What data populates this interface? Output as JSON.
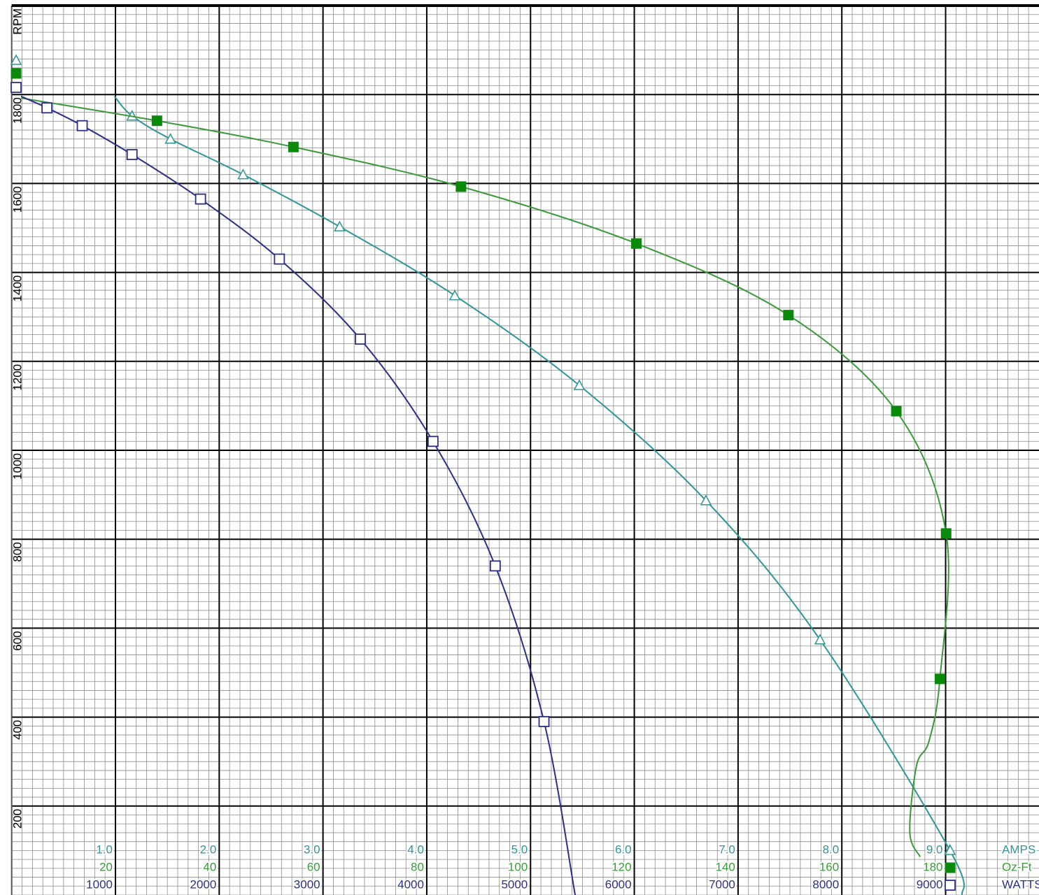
{
  "chart_data": {
    "type": "line",
    "y_label": "RPM",
    "ylim": [
      0,
      2000
    ],
    "yticks": [
      200,
      400,
      600,
      800,
      1000,
      1200,
      1400,
      1600,
      1800
    ],
    "grid": true,
    "series": [
      {
        "name": "AMPS",
        "color": "#2e9696",
        "marker": "triangle",
        "xlim": [
          0,
          9.9
        ],
        "xticks": [
          {
            "value": 1,
            "label": "1.0"
          },
          {
            "value": 2,
            "label": "2.0"
          },
          {
            "value": 3,
            "label": "3.0"
          },
          {
            "value": 4,
            "label": "4.0"
          },
          {
            "value": 5,
            "label": "5.0"
          },
          {
            "value": 6,
            "label": "6.0"
          },
          {
            "value": 7,
            "label": "7.0"
          },
          {
            "value": 8,
            "label": "8.0"
          },
          {
            "value": 9,
            "label": "9.0"
          }
        ],
        "x": [
          0.99,
          1.16,
          1.53,
          2.23,
          3.16,
          4.27,
          5.47,
          6.69,
          7.79,
          9.04,
          9.16
        ],
        "values": [
          1796,
          1752,
          1700,
          1620,
          1503,
          1348,
          1146,
          887,
          574,
          101,
          0
        ],
        "points_x": [
          1.16,
          1.53,
          2.23,
          3.16,
          4.27,
          5.47,
          6.69,
          7.79,
          9.04
        ],
        "points_y": [
          1752,
          1700,
          1620,
          1503,
          1348,
          1146,
          887,
          574,
          101
        ]
      },
      {
        "name": "Oz-Ft",
        "color": "#3a9a3a",
        "marker": "filled-square",
        "xlim": [
          0,
          198
        ],
        "xticks": [
          20,
          40,
          60,
          80,
          100,
          120,
          140,
          160,
          180
        ],
        "x": [
          1.8,
          28,
          54.3,
          86.6,
          120.4,
          149.7,
          170.5,
          180.1,
          178.9,
          176.8,
          174.4,
          173.1,
          175.1
        ],
        "values": [
          1792,
          1741,
          1682,
          1593,
          1465,
          1304,
          1088,
          813,
          486,
          346,
          291,
          141,
          86
        ],
        "points_x": [
          28,
          54.3,
          86.6,
          120.4,
          149.7,
          170.5,
          180.1,
          178.9
        ],
        "points_y": [
          1741,
          1682,
          1593,
          1465,
          1304,
          1088,
          813,
          486
        ]
      },
      {
        "name": "WATTS",
        "color": "#2e2e8a",
        "marker": "open-square",
        "xlim": [
          0,
          9900
        ],
        "xticks": [
          1000,
          2000,
          3000,
          4000,
          5000,
          6000,
          7000,
          8000,
          9000
        ],
        "x": [
          90,
          340,
          680,
          1160,
          1820,
          2580,
          3360,
          4060,
          4660,
          5130,
          5430
        ],
        "values": [
          1796,
          1770,
          1730,
          1665,
          1565,
          1430,
          1250,
          1020,
          740,
          390,
          0
        ],
        "points_x": [
          340,
          680,
          1160,
          1820,
          2580,
          3360,
          4060,
          4660,
          5130
        ],
        "points_y": [
          1770,
          1730,
          1665,
          1565,
          1430,
          1250,
          1020,
          740,
          390
        ]
      }
    ]
  }
}
